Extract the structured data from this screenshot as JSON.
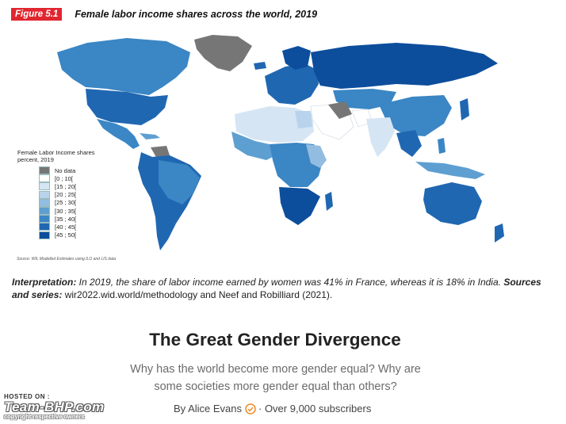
{
  "figure": {
    "badge": "Figure 5.1",
    "title": "Female labor income shares across the world, 2019"
  },
  "legend": {
    "title_line1": "Female Labor Income shares",
    "title_line2": "percent, 2019",
    "items": [
      {
        "label": "No data",
        "color": "#767676"
      },
      {
        "label": "[0 ; 10[",
        "color": "#ffffff"
      },
      {
        "label": "[15 ; 20[",
        "color": "#d6e5f3"
      },
      {
        "label": "[20 ; 25[",
        "color": "#b9d3ec"
      },
      {
        "label": "[25 ; 30[",
        "color": "#93bde0"
      },
      {
        "label": "[30 ; 35[",
        "color": "#5e9fd1"
      },
      {
        "label": "[35 ; 40[",
        "color": "#3b86c4"
      },
      {
        "label": "[40 ; 45[",
        "color": "#2067b2"
      },
      {
        "label": "[45 ; 50[",
        "color": "#0c4e9c"
      }
    ]
  },
  "source_note": "Source: WIL Modelled Estimates using ILO and LIS data",
  "interpretation": {
    "label": "Interpretation:",
    "text": " In 2019, the share of labor income earned by women was 41% in France, whereas it is 18% in India. ",
    "sources_label": "Sources and series:",
    "sources_text": " wir2022.wid.world/methodology and Neef and Robilliard (2021)."
  },
  "article": {
    "title": "The Great Gender Divergence",
    "subtitle": "Why has the world become more gender equal? Why are some societies more gender equal than others?",
    "author": "By Alice Evans",
    "subscribers": "· Over 9,000 subscribers"
  },
  "watermark": {
    "hosted_on": "HOSTED ON :",
    "brand": "Team-BHP.com",
    "copyright": "copyright respective owners"
  },
  "colors": {
    "accent_red": "#e0262f",
    "verified": "#f08a24"
  }
}
